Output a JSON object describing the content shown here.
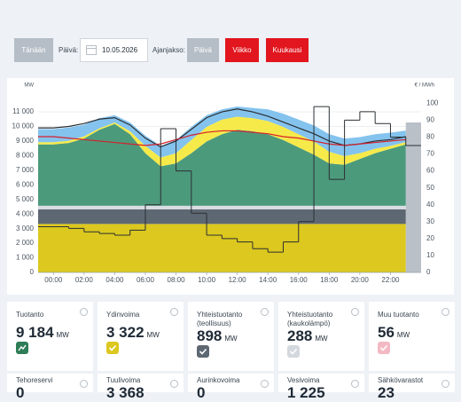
{
  "controls": {
    "today": "Tänään",
    "date_label": "Päivä:",
    "date": "10.05.2026",
    "period_label": "Ajanjakso:",
    "periods": [
      "Päivä",
      "Viikko",
      "Kuukausi"
    ]
  },
  "chart_data": {
    "type": "area",
    "stacked": true,
    "ylabel": "MW",
    "y2label": "€ / MWh",
    "x": [
      -1,
      0,
      1,
      2,
      3,
      4,
      5,
      6,
      7,
      8,
      9,
      10,
      11,
      12,
      13,
      14,
      15,
      16,
      17,
      18,
      19,
      20,
      21,
      22,
      23
    ],
    "xlim": [
      -1,
      24
    ],
    "xticks": [
      {
        "value": 0,
        "label": "00:00"
      },
      {
        "value": 2,
        "label": "02:00"
      },
      {
        "value": 4,
        "label": "04:00"
      },
      {
        "value": 6,
        "label": "06:00"
      },
      {
        "value": 8,
        "label": "08:00"
      },
      {
        "value": 10,
        "label": "10:00"
      },
      {
        "value": 12,
        "label": "12:00"
      },
      {
        "value": 14,
        "label": "14:00"
      },
      {
        "value": 16,
        "label": "16:00"
      },
      {
        "value": 18,
        "label": "18:00"
      },
      {
        "value": 20,
        "label": "20:00"
      },
      {
        "value": 22,
        "label": "22:00"
      }
    ],
    "ylim": [
      0,
      12400
    ],
    "yticks": [
      0,
      {
        "value": 1000,
        "label": "1 000"
      },
      {
        "value": 2000,
        "label": "2 000"
      },
      {
        "value": 3000,
        "label": "3 000"
      },
      {
        "value": 4000,
        "label": "4 000"
      },
      {
        "value": 5000,
        "label": "5 000"
      },
      {
        "value": 6000,
        "label": "6 000"
      },
      {
        "value": 7000,
        "label": "7 000"
      },
      {
        "value": 8000,
        "label": "8 000"
      },
      {
        "value": 9000,
        "label": "9 000"
      },
      {
        "value": 10000,
        "label": "10 000"
      },
      {
        "value": 11000,
        "label": "11 000"
      }
    ],
    "y2lim": [
      0,
      107
    ],
    "y2ticks": [
      0,
      10,
      20,
      30,
      40,
      50,
      60,
      70,
      80,
      90,
      100
    ],
    "grid": true,
    "series": [
      {
        "type": "area",
        "color": "#dcc81e",
        "values": [
          3320,
          3320,
          3320,
          3320,
          3320,
          3320,
          3320,
          3320,
          3320,
          3320,
          3320,
          3320,
          3320,
          3320,
          3320,
          3320,
          3320,
          3320,
          3320,
          3320,
          3320,
          3320,
          3320,
          3320,
          3320
        ]
      },
      {
        "type": "area",
        "color": "#5e6873",
        "values": [
          1000,
          1000,
          1000,
          1000,
          1000,
          1000,
          1000,
          1000,
          1000,
          1000,
          1000,
          1000,
          1000,
          1000,
          1000,
          1000,
          1000,
          1000,
          1000,
          1000,
          1000,
          1000,
          1000,
          1000,
          1000
        ]
      },
      {
        "type": "area",
        "color": "#d9dde2",
        "values": [
          250,
          250,
          250,
          250,
          250,
          250,
          250,
          250,
          250,
          250,
          250,
          250,
          250,
          250,
          250,
          250,
          250,
          250,
          250,
          250,
          250,
          250,
          250,
          250,
          250
        ]
      },
      {
        "type": "area",
        "color": "#4c9a7c",
        "values": [
          4200,
          4200,
          4300,
          4600,
          5200,
          5600,
          4900,
          3600,
          2700,
          2900,
          3600,
          4400,
          4900,
          5200,
          5100,
          4900,
          4500,
          4000,
          3500,
          2900,
          2800,
          3200,
          3600,
          3900,
          4200
        ]
      },
      {
        "type": "area",
        "color": "#f6ea4a",
        "values": [
          150,
          150,
          150,
          150,
          100,
          100,
          200,
          500,
          600,
          700,
          900,
          1000,
          1000,
          900,
          900,
          900,
          900,
          900,
          900,
          800,
          600,
          400,
          300,
          200,
          150
        ]
      },
      {
        "type": "area",
        "color": "#84c3ee",
        "values": [
          900,
          900,
          900,
          800,
          700,
          500,
          600,
          700,
          800,
          900,
          900,
          800,
          700,
          700,
          700,
          800,
          900,
          1000,
          1100,
          1200,
          1200,
          1100,
          1000,
          900,
          800
        ]
      },
      {
        "type": "line",
        "color": "#2b2f33",
        "values": [
          9900,
          9900,
          10000,
          10200,
          10500,
          10600,
          10100,
          9200,
          8600,
          9000,
          9800,
          10600,
          11000,
          11200,
          11000,
          10700,
          10300,
          9900,
          9500,
          9000,
          8700,
          8800,
          9000,
          9100,
          9300
        ]
      },
      {
        "type": "line",
        "color": "#d6202a",
        "values": [
          9300,
          9300,
          9200,
          9100,
          9000,
          8900,
          8800,
          8700,
          8800,
          9100,
          9400,
          9600,
          9700,
          9700,
          9600,
          9500,
          9300,
          9200,
          9000,
          8800,
          8700,
          8800,
          8900,
          9000,
          9100
        ]
      },
      {
        "type": "step",
        "axis": "y2",
        "color": "#2b2f33",
        "values": [
          27,
          27,
          26,
          24,
          23,
          22,
          25,
          40,
          85,
          60,
          35,
          22,
          20,
          18,
          14,
          12,
          18,
          30,
          98,
          55,
          90,
          95,
          88,
          80,
          75
        ]
      }
    ]
  },
  "tiles": [
    {
      "label": "Tuotanto",
      "value": "9 184",
      "unit": "MW"
    },
    {
      "label": "Ydinvoima",
      "value": "3 322",
      "unit": "MW"
    },
    {
      "label": "Yhteistuotanto (teollisuus)",
      "value": "898",
      "unit": "MW"
    },
    {
      "label": "Yhteistuotanto (kaukolämpö)",
      "value": "288",
      "unit": "MW"
    },
    {
      "label": "Muu tuotanto",
      "value": "56",
      "unit": "MW"
    },
    {
      "label": "Tehoreservi",
      "value": "0"
    },
    {
      "label": "Tuulivoima",
      "value": "3 368"
    },
    {
      "label": "Aurinkovoima",
      "value": "0"
    },
    {
      "label": "Vesivoima",
      "value": "1 225"
    },
    {
      "label": "Sähkövarastot",
      "value": "23"
    }
  ]
}
